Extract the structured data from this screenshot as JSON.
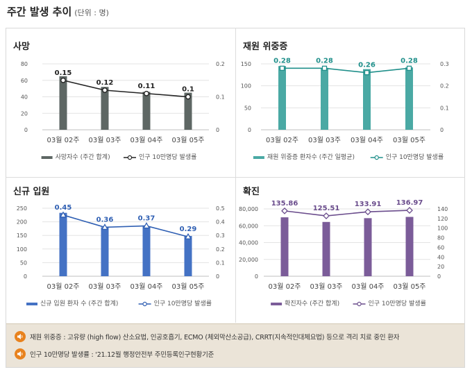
{
  "header": {
    "title": "주간 발생 추이",
    "unit": "(단위 : 명)"
  },
  "colors": {
    "death": "#5e6764",
    "critical": "#4aa9a4",
    "admission": "#4472c4",
    "confirmed": "#7b5c99"
  },
  "chart_data": [
    {
      "id": "death",
      "type": "bar",
      "title": "사망",
      "categories": [
        "03월 02주",
        "03월 03주",
        "03월 04주",
        "03월 05주"
      ],
      "y_left": {
        "lim": [
          0,
          80
        ],
        "ticks": [
          "0",
          "20",
          "40",
          "60",
          "80"
        ],
        "step": 20
      },
      "y_right": {
        "lim": [
          0,
          0.2
        ],
        "ticks": [
          "0",
          "0.1",
          "0.2"
        ],
        "step": 0.1
      },
      "grid": true,
      "legend_position": "bottom",
      "series": [
        {
          "name": "사망자수 (주간 합계)",
          "type": "bar",
          "axis": "left",
          "values": [
            65,
            52,
            46,
            45
          ],
          "color": "#5e6764"
        },
        {
          "name": "인구 10만명당 발생률",
          "type": "line",
          "axis": "right",
          "values": [
            0.15,
            0.12,
            0.11,
            0.1
          ],
          "labels": [
            "0.15",
            "0.12",
            "0.11",
            "0.1"
          ],
          "color": "#222222"
        }
      ]
    },
    {
      "id": "critical",
      "type": "bar",
      "title": "재원 위중증",
      "categories": [
        "03월 02주",
        "03월 03주",
        "03월 04주",
        "03월 05주"
      ],
      "y_left": {
        "lim": [
          0,
          150
        ],
        "ticks": [
          "0",
          "50",
          "100",
          "150"
        ],
        "step": 50
      },
      "y_right": {
        "lim": [
          0,
          0.3
        ],
        "ticks": [
          "0",
          "0.1",
          "0.2",
          "0.3"
        ],
        "step": 0.1
      },
      "grid": true,
      "legend_position": "bottom",
      "series": [
        {
          "name": "재원 위중증 환자수 (주간 일평균)",
          "type": "bar",
          "axis": "left",
          "values": [
            145,
            141,
            138,
            142
          ],
          "color": "#4aa9a4"
        },
        {
          "name": "인구 10만명당 발생률",
          "type": "line",
          "axis": "right",
          "values": [
            0.28,
            0.28,
            0.26,
            0.28
          ],
          "labels": [
            "0.28",
            "0.28",
            "0.26",
            "0.28"
          ],
          "color": "#1f8f8a"
        }
      ]
    },
    {
      "id": "admission",
      "type": "bar",
      "title": "신규 입원",
      "categories": [
        "03월 02주",
        "03월 03주",
        "03월 04주",
        "03월 05주"
      ],
      "y_left": {
        "lim": [
          0,
          250
        ],
        "ticks": [
          "0",
          "50",
          "100",
          "150",
          "200",
          "250"
        ],
        "step": 50
      },
      "y_right": {
        "lim": [
          0,
          0.5
        ],
        "ticks": [
          "0",
          "0.1",
          "0.2",
          "0.3",
          "0.4",
          "0.5"
        ],
        "step": 0.1
      },
      "grid": true,
      "legend_position": "bottom",
      "series": [
        {
          "name": "신규 입원 환자 수 (주간 합계)",
          "type": "bar",
          "axis": "left",
          "values": [
            233,
            180,
            183,
            148
          ],
          "color": "#4472c4"
        },
        {
          "name": "인구 10만명당 발생률",
          "type": "line",
          "axis": "right",
          "values": [
            0.45,
            0.36,
            0.37,
            0.29
          ],
          "labels": [
            "0.45",
            "0.36",
            "0.37",
            "0.29"
          ],
          "color": "#2f5fb3"
        }
      ]
    },
    {
      "id": "confirmed",
      "type": "bar",
      "title": "확진",
      "categories": [
        "03월 02주",
        "03월 03주",
        "03월 04주",
        "03월 05주"
      ],
      "y_left": {
        "lim": [
          0,
          80000
        ],
        "ticks": [
          "0",
          "20,000",
          "40,000",
          "60,000",
          "80,000"
        ],
        "step": 20000
      },
      "y_right": {
        "lim": [
          0,
          140
        ],
        "ticks": [
          "0",
          "20",
          "40",
          "60",
          "80",
          "100",
          "120",
          "140"
        ],
        "step": 20
      },
      "grid": true,
      "legend_position": "bottom",
      "series": [
        {
          "name": "확진자수 (주간 합계)",
          "type": "bar",
          "axis": "left",
          "values": [
            70000,
            64500,
            69000,
            70500
          ],
          "color": "#7b5c99"
        },
        {
          "name": "인구 10만명당 발생률",
          "type": "line",
          "axis": "right",
          "values": [
            135.86,
            125.51,
            133.91,
            136.97
          ],
          "labels": [
            "135.86",
            "125.51",
            "133.91",
            "136.97"
          ],
          "color": "#6a4c8c"
        }
      ]
    }
  ],
  "notes": [
    {
      "icon": "speaker-icon",
      "text": "재원 위중증 : 고유량 (high flow) 산소요법, 인공호흡기, ECMO (체외막산소공급), CRRT(지속적인대체요법) 등으로 격리 치료 중인 환자"
    },
    {
      "icon": "speaker-icon",
      "text": "인구 10만명당 발생률 : '21.12월 행정안전부 주민등록인구현황기준"
    }
  ]
}
